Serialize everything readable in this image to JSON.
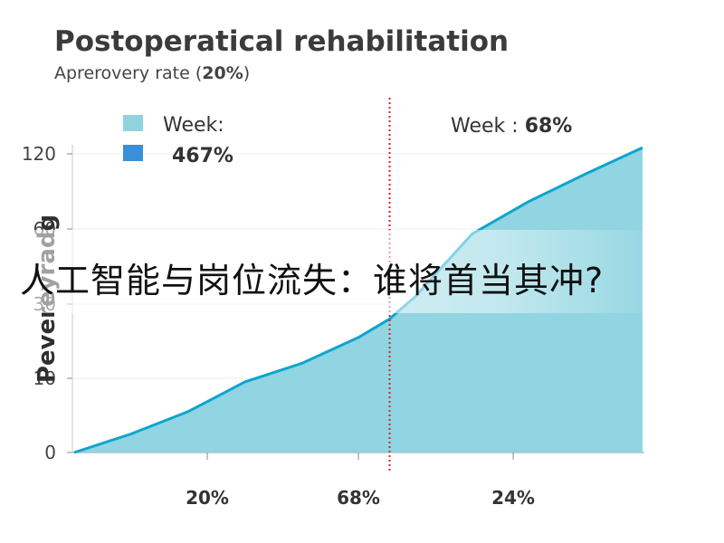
{
  "chart_data": {
    "type": "area",
    "title": "Postoperatical rehabilitation",
    "subtitle_prefix": "Aprerovery rate (",
    "subtitle_bold": "20%",
    "subtitle_suffix": ")",
    "ylabel": "Pevereyradg",
    "xlabel": "",
    "yticks": [
      0,
      10,
      30,
      60,
      120
    ],
    "xtick_labels": [
      "20%",
      "68%",
      "24%"
    ],
    "legend": [
      {
        "label": "Week:",
        "color": "#8fd3df"
      },
      {
        "label": "467%",
        "color": "#3a8fd6",
        "bold": true
      }
    ],
    "marker_label_prefix": "Week : ",
    "marker_label_value": "68%",
    "marker_x": 55.5,
    "x_range": [
      0,
      100
    ],
    "series": [
      {
        "x": [
          0,
          10,
          20,
          30,
          40,
          50,
          55.5,
          60,
          70,
          80,
          90,
          100
        ],
        "y": [
          0,
          2.5,
          5.5,
          9.5,
          14,
          21,
          26,
          33,
          58,
          82,
          104,
          125
        ]
      }
    ],
    "colors": {
      "fill": "#8ad3df",
      "line": "#0ea5cf",
      "marker": "#d0242a"
    }
  },
  "overlay_text": "人工智能与岗位流失：谁将首当其冲?"
}
